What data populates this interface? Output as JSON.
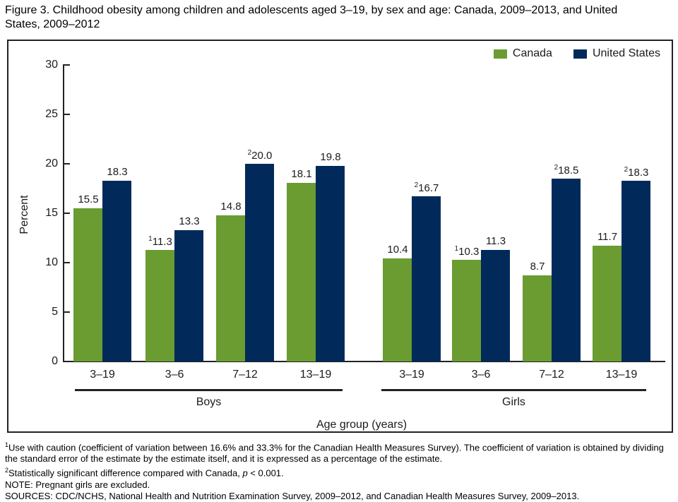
{
  "title": "Figure 3. Childhood obesity among children and adolescents aged 3–19, by sex and age: Canada, 2009–2013, and United States, 2009–2012",
  "chart_data": {
    "type": "bar",
    "title": "Childhood obesity among children and adolescents aged 3–19, by sex and age: Canada, 2009–2013, and United States, 2009–2012",
    "xlabel": "Age group (years)",
    "ylabel": "Percent",
    "ylim": [
      0,
      30
    ],
    "yticks": [
      0,
      5,
      10,
      15,
      20,
      25,
      30
    ],
    "grid": false,
    "legend_position": "top-right",
    "group_sections": [
      "Boys",
      "Girls"
    ],
    "categories": [
      "3–19",
      "3–6",
      "7–12",
      "13–19",
      "3–19",
      "3–6",
      "7–12",
      "13–19"
    ],
    "series": [
      {
        "name": "Canada",
        "color": "#6A9C32",
        "values": [
          15.5,
          11.3,
          14.8,
          18.1,
          10.4,
          10.3,
          8.7,
          11.7
        ],
        "labels": [
          {
            "sup": "",
            "val": "15.5"
          },
          {
            "sup": "1",
            "val": "11.3"
          },
          {
            "sup": "",
            "val": "14.8"
          },
          {
            "sup": "",
            "val": "18.1"
          },
          {
            "sup": "",
            "val": "10.4"
          },
          {
            "sup": "1",
            "val": "10.3"
          },
          {
            "sup": "",
            "val": "8.7"
          },
          {
            "sup": "",
            "val": "11.7"
          }
        ]
      },
      {
        "name": "United States",
        "color": "#012A5B",
        "values": [
          18.3,
          13.3,
          20.0,
          19.8,
          16.7,
          11.3,
          18.5,
          18.3
        ],
        "labels": [
          {
            "sup": "",
            "val": "18.3"
          },
          {
            "sup": "",
            "val": "13.3"
          },
          {
            "sup": "2",
            "val": "20.0"
          },
          {
            "sup": "",
            "val": "19.8"
          },
          {
            "sup": "2",
            "val": "16.7"
          },
          {
            "sup": "",
            "val": "11.3"
          },
          {
            "sup": "2",
            "val": "18.5"
          },
          {
            "sup": "2",
            "val": "18.3"
          }
        ]
      }
    ]
  },
  "footnotes": [
    {
      "segments": [
        {
          "style": "sup",
          "text": "1"
        },
        {
          "style": "normal",
          "text": "Use with caution (coefficient of variation between 16.6% and 33.3% for the Canadian Health Measures Survey). The coefficient of variation is obtained by dividing the standard error of the estimate by the estimate itself, and it is expressed as a percentage of the estimate."
        }
      ]
    },
    {
      "segments": [
        {
          "style": "sup",
          "text": "2"
        },
        {
          "style": "normal",
          "text": "Statistically significant difference compared with Canada, "
        },
        {
          "style": "italic",
          "text": "p"
        },
        {
          "style": "normal",
          "text": " < 0.001."
        }
      ]
    },
    {
      "segments": [
        {
          "style": "normal",
          "text": "NOTE: Pregnant girls are excluded."
        }
      ]
    },
    {
      "segments": [
        {
          "style": "normal",
          "text": "SOURCES: CDC/NCHS, National Health and Nutrition Examination Survey, 2009–2012, and Canadian Health Measures Survey, 2009–2013."
        }
      ]
    }
  ]
}
